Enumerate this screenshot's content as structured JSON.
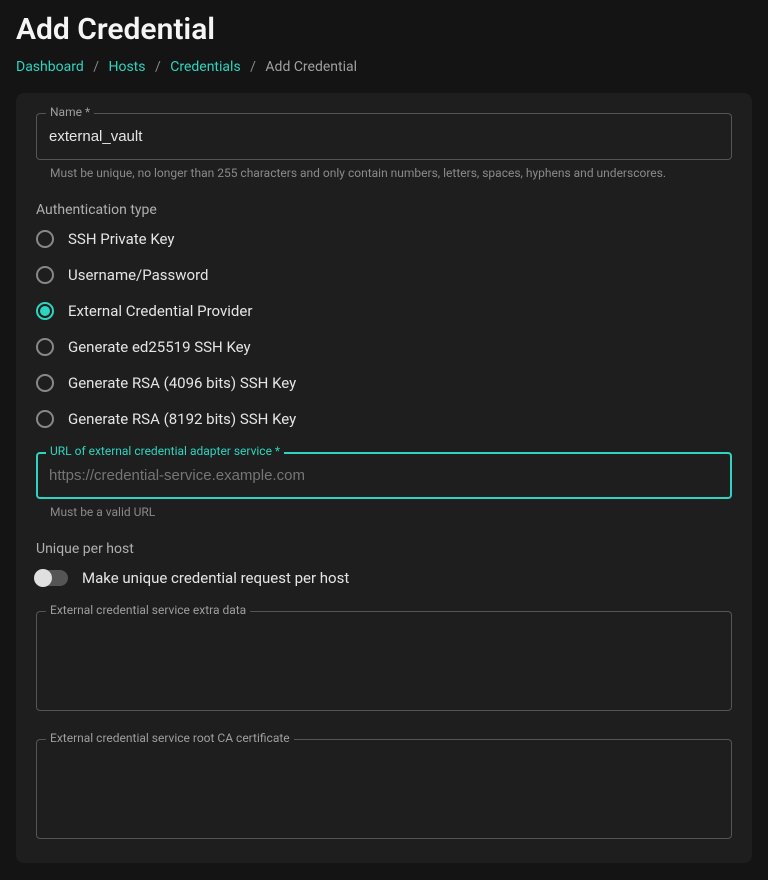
{
  "page": {
    "title": "Add Credential"
  },
  "breadcrumb": {
    "items": [
      {
        "label": "Dashboard",
        "link": true
      },
      {
        "label": "Hosts",
        "link": true
      },
      {
        "label": "Credentials",
        "link": true
      },
      {
        "label": "Add Credential",
        "link": false
      }
    ]
  },
  "name_field": {
    "label": "Name *",
    "value": "external_vault",
    "helper": "Must be unique, no longer than 255 characters and only contain numbers, letters, spaces, hyphens and underscores."
  },
  "auth_type": {
    "label": "Authentication type",
    "selected_index": 2,
    "options": [
      "SSH Private Key",
      "Username/Password",
      "External Credential Provider",
      "Generate ed25519 SSH Key",
      "Generate RSA (4096 bits) SSH Key",
      "Generate RSA (8192 bits) SSH Key"
    ]
  },
  "url_field": {
    "label": "URL of external credential adapter service *",
    "value": "",
    "placeholder": "https://credential-service.example.com",
    "helper": "Must be a valid URL"
  },
  "unique_per_host": {
    "section_label": "Unique per host",
    "toggle_label": "Make unique credential request per host",
    "enabled": false
  },
  "extra_data": {
    "label": "External credential service extra data",
    "value": ""
  },
  "root_ca": {
    "label": "External credential service root CA certificate",
    "value": ""
  },
  "colors": {
    "accent": "#2dd4bf",
    "background": "#141414",
    "card": "#1e1e1e",
    "border": "#555",
    "text": "#e5e5e5",
    "muted": "#8a8a8a"
  }
}
